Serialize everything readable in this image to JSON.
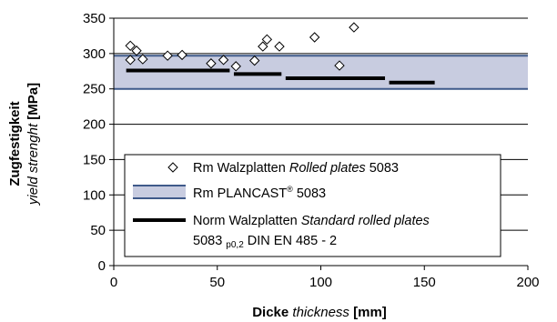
{
  "chart_data": {
    "type": "scatter",
    "xlabel": {
      "de": "Dicke",
      "en": "thickness",
      "unit": "[mm]"
    },
    "ylabel": {
      "de": "Zugfestigkeit",
      "en": "yield strenght",
      "unit": "[MPa]"
    },
    "xlim": [
      0,
      200
    ],
    "ylim": [
      0,
      350
    ],
    "x_ticks": [
      "0",
      "50",
      "100",
      "150",
      "200"
    ],
    "y_ticks": [
      "0",
      "50",
      "100",
      "150",
      "200",
      "250",
      "300",
      "350"
    ],
    "grid": "horizontal",
    "legend_placement": "center-left",
    "series": [
      {
        "name": "Rm Walzplatten Rolled plates 5083",
        "legend": {
          "prefix": "Rm",
          "de": "Walzplatten",
          "en": "Rolled plates",
          "suffix": "5083"
        },
        "kind": "points",
        "marker": "diamond",
        "points": [
          [
            8,
            311
          ],
          [
            8,
            291
          ],
          [
            11,
            304
          ],
          [
            14,
            292
          ],
          [
            26,
            297
          ],
          [
            33,
            298
          ],
          [
            47,
            286
          ],
          [
            53,
            291
          ],
          [
            59,
            282
          ],
          [
            68,
            290
          ],
          [
            72,
            310
          ],
          [
            74,
            320
          ],
          [
            80,
            310
          ],
          [
            97,
            323
          ],
          [
            109,
            283
          ],
          [
            116,
            337
          ]
        ]
      },
      {
        "name": "Rm PLANCAST® 5083",
        "legend": {
          "prefix": "Rm",
          "brand": "PLANCAST",
          "reg": "®",
          "suffix": "5083"
        },
        "kind": "band",
        "range": [
          250,
          297
        ],
        "color": "#c8cce0",
        "edge_color": "#3f5a8a"
      },
      {
        "name": "Norm Walzplatten Standard rolled plates 5083 p0,2 DIN EN 485 - 2",
        "legend": {
          "prefix": "Norm",
          "de": "Walzplatten",
          "en": "Standard rolled plates",
          "line2_a": "5083",
          "line2_sub": "p0,2",
          "line2_b": "DIN EN 485 - 2"
        },
        "kind": "segments",
        "color": "#000000",
        "segments": [
          {
            "x0": 6,
            "x1": 56,
            "y": 276
          },
          {
            "x0": 58,
            "x1": 81,
            "y": 271
          },
          {
            "x0": 83,
            "x1": 131,
            "y": 265
          },
          {
            "x0": 133,
            "x1": 155,
            "y": 259
          }
        ]
      }
    ]
  }
}
